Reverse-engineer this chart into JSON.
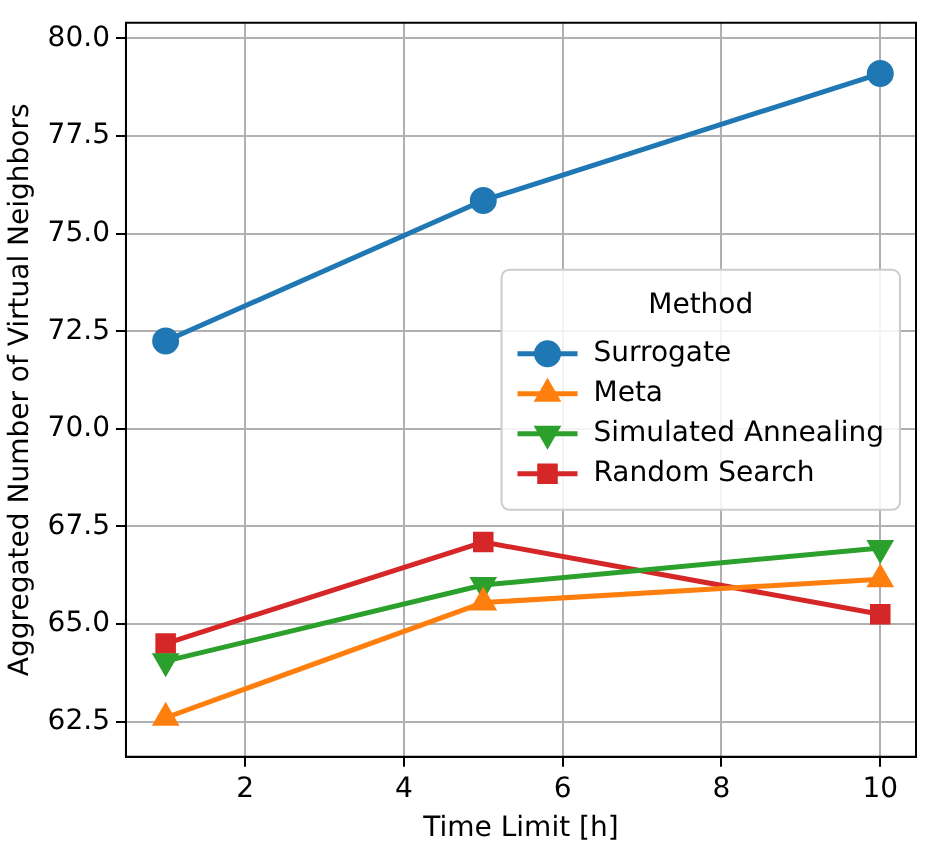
{
  "chart_data": {
    "type": "line",
    "xlabel": "Time Limit [h]",
    "ylabel": "Aggregated Number of Virtual Neighbors",
    "legend_title": "Method",
    "legend": "center right",
    "grid": true,
    "x": [
      1,
      5,
      10
    ],
    "xlim": [
      0.5,
      10.45
    ],
    "xticks": [
      2,
      4,
      6,
      8,
      10
    ],
    "ylim": [
      61.6,
      80.4
    ],
    "yticks": [
      62.5,
      {
        "value": 65,
        "label": "65.0"
      },
      67.5,
      {
        "value": 70,
        "label": "70.0"
      },
      72.5,
      {
        "value": 75,
        "label": "75.0"
      },
      77.5,
      {
        "value": 80,
        "label": "80.0"
      }
    ],
    "series": [
      {
        "name": "Surrogate",
        "color": "#1f77b4",
        "marker": "circle",
        "values": [
          72.25,
          75.85,
          79.1
        ]
      },
      {
        "name": "Meta",
        "color": "#ff7f0e",
        "marker": "triangle",
        "values": [
          62.6,
          65.55,
          66.15
        ]
      },
      {
        "name": "Simulated Annealing",
        "color": "#2ca02c",
        "marker": "triangle_down",
        "values": [
          64.05,
          66.0,
          66.95
        ]
      },
      {
        "name": "Random Search",
        "color": "#d62728",
        "marker": "square",
        "values": [
          64.5,
          67.1,
          65.25
        ]
      }
    ]
  }
}
